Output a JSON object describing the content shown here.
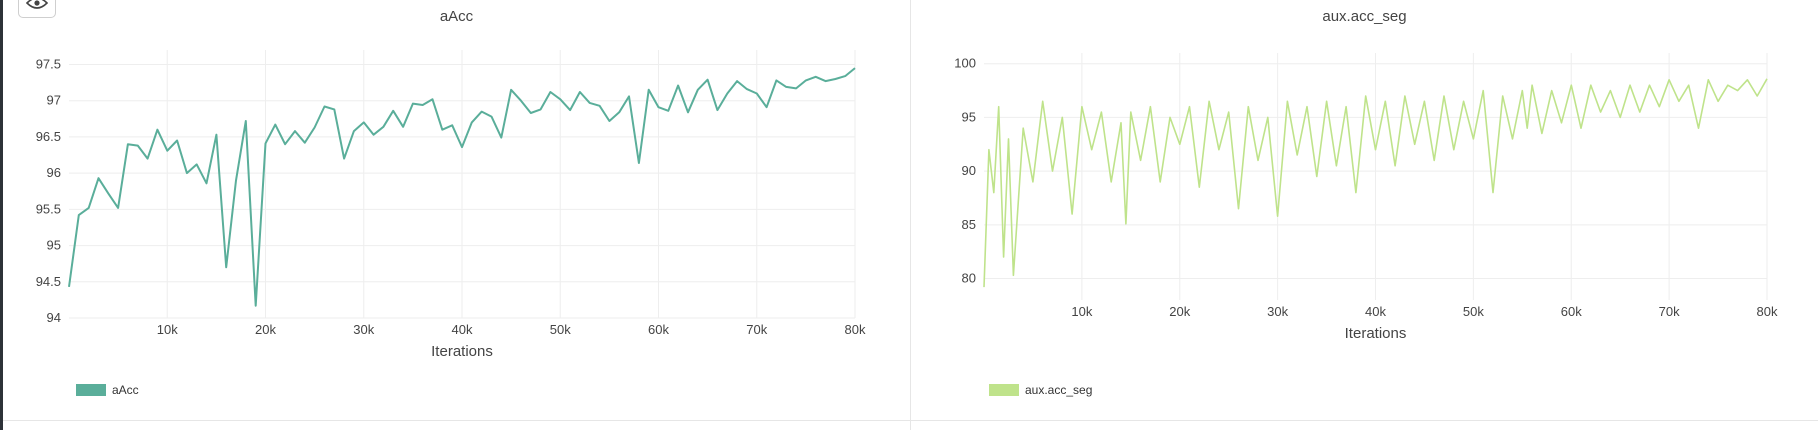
{
  "toolbar": {
    "view_icon": "eye-icon"
  },
  "chart_data": [
    {
      "type": "line",
      "title": "aAcc",
      "xlabel": "Iterations",
      "ylabel": "",
      "xlim": [
        0,
        80000
      ],
      "ylim": [
        94,
        97.7
      ],
      "xticks": [
        10000,
        20000,
        30000,
        40000,
        50000,
        60000,
        70000,
        80000
      ],
      "xtick_labels": [
        "10k",
        "20k",
        "30k",
        "40k",
        "50k",
        "60k",
        "70k",
        "80k"
      ],
      "yticks": [
        94,
        94.5,
        95,
        95.5,
        96,
        96.5,
        97,
        97.5
      ],
      "ytick_labels": [
        "94",
        "94.5",
        "95",
        "95.5",
        "96",
        "96.5",
        "97",
        "97.5"
      ],
      "grid": true,
      "legend": "bottom-left",
      "series": [
        {
          "name": "aAcc",
          "color": "#5aae9a",
          "x": [
            0,
            1000,
            2000,
            3000,
            4000,
            5000,
            6000,
            7000,
            8000,
            9000,
            10000,
            11000,
            12000,
            13000,
            14000,
            15000,
            16000,
            17000,
            18000,
            19000,
            20000,
            21000,
            22000,
            23000,
            24000,
            25000,
            26000,
            27000,
            28000,
            29000,
            30000,
            31000,
            32000,
            33000,
            34000,
            35000,
            36000,
            37000,
            38000,
            39000,
            40000,
            41000,
            42000,
            43000,
            44000,
            45000,
            46000,
            47000,
            48000,
            49000,
            50000,
            51000,
            52000,
            53000,
            54000,
            55000,
            56000,
            57000,
            58000,
            59000,
            60000,
            61000,
            62000,
            63000,
            64000,
            65000,
            66000,
            67000,
            68000,
            69000,
            70000,
            71000,
            72000,
            73000,
            74000,
            75000,
            76000,
            77000,
            78000,
            79000,
            80000
          ],
          "values": [
            94.43,
            95.42,
            95.52,
            95.93,
            95.72,
            95.52,
            96.4,
            96.38,
            96.2,
            96.6,
            96.31,
            96.45,
            96.0,
            96.12,
            95.86,
            96.53,
            94.7,
            95.9,
            96.72,
            94.17,
            96.41,
            96.67,
            96.4,
            96.58,
            96.42,
            96.63,
            96.92,
            96.88,
            96.2,
            96.58,
            96.7,
            96.53,
            96.64,
            96.86,
            96.64,
            96.96,
            96.94,
            97.02,
            96.6,
            96.66,
            96.36,
            96.7,
            96.85,
            96.78,
            96.49,
            97.15,
            97.0,
            96.83,
            96.88,
            97.12,
            97.02,
            96.87,
            97.12,
            96.97,
            96.93,
            96.72,
            96.84,
            97.06,
            96.14,
            97.15,
            96.91,
            96.86,
            97.21,
            96.84,
            97.15,
            97.29,
            96.87,
            97.1,
            97.27,
            97.16,
            97.1,
            96.91,
            97.28,
            97.19,
            97.17,
            97.28,
            97.33,
            97.27,
            97.3,
            97.34,
            97.45
          ]
        }
      ]
    },
    {
      "type": "line",
      "title": "aux.acc_seg",
      "xlabel": "Iterations",
      "ylabel": "",
      "xlim": [
        0,
        80000
      ],
      "ylim": [
        78,
        101
      ],
      "xticks": [
        10000,
        20000,
        30000,
        40000,
        50000,
        60000,
        70000,
        80000
      ],
      "xtick_labels": [
        "10k",
        "20k",
        "30k",
        "40k",
        "50k",
        "60k",
        "70k",
        "80k"
      ],
      "yticks": [
        80,
        85,
        90,
        95,
        100
      ],
      "ytick_labels": [
        "80",
        "85",
        "90",
        "95",
        "100"
      ],
      "grid": true,
      "legend": "bottom-left",
      "series": [
        {
          "name": "aux.acc_seg",
          "color": "#bfe38b",
          "x": [
            0,
            500,
            1000,
            1500,
            2000,
            2500,
            3000,
            4000,
            5000,
            6000,
            7000,
            8000,
            9000,
            10000,
            11000,
            12000,
            13000,
            14000,
            14500,
            15000,
            16000,
            17000,
            18000,
            19000,
            20000,
            21000,
            22000,
            23000,
            24000,
            25000,
            26000,
            27000,
            28000,
            29000,
            30000,
            31000,
            32000,
            33000,
            34000,
            35000,
            36000,
            37000,
            38000,
            39000,
            40000,
            41000,
            42000,
            43000,
            44000,
            45000,
            46000,
            47000,
            48000,
            49000,
            50000,
            51000,
            52000,
            53000,
            54000,
            55000,
            55500,
            56000,
            57000,
            58000,
            59000,
            60000,
            61000,
            62000,
            63000,
            64000,
            65000,
            66000,
            67000,
            68000,
            69000,
            70000,
            71000,
            72000,
            73000,
            74000,
            75000,
            76000,
            77000,
            78000,
            79000,
            80000
          ],
          "values": [
            79.2,
            92.0,
            88.0,
            96.0,
            82.0,
            93.0,
            80.3,
            94.0,
            89.0,
            96.5,
            90.0,
            95.0,
            86.0,
            96.0,
            92.0,
            95.5,
            89.0,
            94.5,
            85.1,
            95.5,
            91.0,
            96.0,
            89.0,
            95.0,
            92.5,
            96.0,
            88.5,
            96.5,
            92.0,
            95.5,
            86.5,
            96.0,
            91.0,
            95.0,
            85.8,
            96.5,
            91.5,
            96.0,
            89.5,
            96.5,
            90.5,
            96.0,
            88.0,
            97.0,
            92.0,
            96.5,
            90.5,
            97.0,
            92.5,
            96.5,
            91.0,
            97.0,
            92.0,
            96.5,
            93.0,
            97.5,
            88.0,
            97.0,
            93.0,
            97.5,
            94.0,
            98.0,
            93.5,
            97.5,
            94.5,
            98.0,
            94.0,
            98.0,
            95.5,
            97.5,
            95.0,
            98.0,
            95.5,
            98.0,
            96.0,
            98.5,
            96.5,
            98.0,
            94.0,
            98.5,
            96.5,
            98.0,
            97.5,
            98.5,
            97.0,
            98.6
          ]
        }
      ]
    }
  ]
}
